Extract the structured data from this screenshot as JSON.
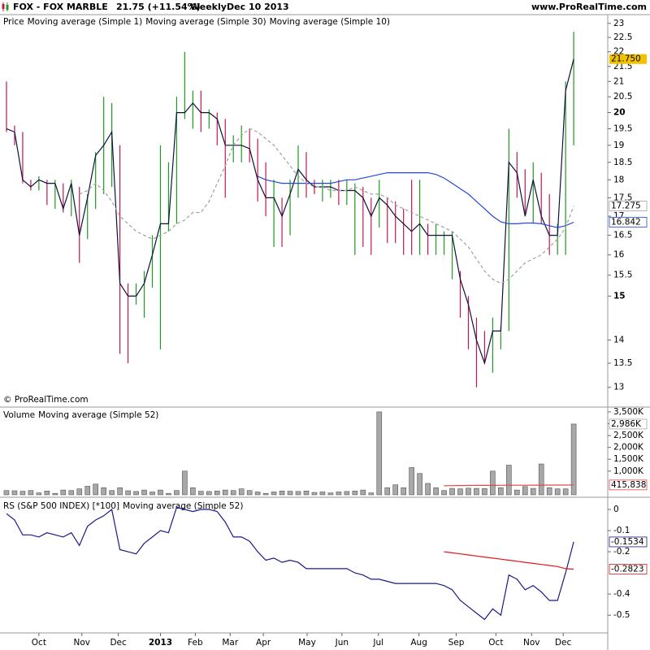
{
  "header": {
    "symbol": "FOX - FOX MARBLE",
    "quote": "21.75 (+11.54%)",
    "period": "Weekly",
    "date": "Dec 10 2013",
    "site": "www.ProRealTime.com"
  },
  "copyright": "© ProRealTime.com",
  "chart_data": [
    {
      "type": "hlc",
      "legend_title": "Price",
      "log_scale": true,
      "ylim": [
        12.62,
        23.32
      ],
      "yticks": [
        13,
        13.5,
        14,
        15,
        15.5,
        16,
        16.5,
        17,
        17.5,
        18,
        18.5,
        19,
        19.5,
        20,
        20.5,
        21,
        21.5,
        22,
        22.5,
        23
      ],
      "up_color": "#1e9a1e",
      "down_color": "#c0184e",
      "high": [
        21.0,
        19.6,
        19.4,
        18.0,
        18.1,
        18.0,
        18.0,
        17.9,
        18.0,
        17.8,
        17.6,
        18.8,
        20.5,
        20.3,
        19.0,
        15.3,
        15.3,
        15.6,
        16.5,
        19.0,
        18.5,
        20.5,
        22.0,
        20.7,
        20.7,
        20.1,
        20.0,
        19.8,
        19.3,
        19.6,
        19.5,
        19.2,
        18.5,
        18.0,
        17.5,
        18.0,
        19.0,
        18.8,
        18.0,
        18.0,
        18.0,
        18.0,
        18.0,
        17.9,
        17.8,
        17.5,
        18.0,
        17.5,
        17.4,
        17.2,
        18.0,
        18.0,
        16.8,
        16.8,
        16.6,
        16.6,
        15.6,
        15.0,
        14.5,
        14.2,
        14.5,
        14.3,
        19.5,
        18.8,
        18.3,
        18.5,
        18.2,
        17.6,
        16.8,
        21.0,
        22.7
      ],
      "low": [
        19.4,
        19.0,
        17.9,
        17.7,
        17.7,
        17.3,
        17.2,
        17.1,
        17.0,
        15.8,
        16.4,
        17.2,
        17.6,
        17.8,
        13.7,
        13.5,
        14.8,
        14.5,
        15.2,
        13.8,
        16.6,
        16.8,
        19.8,
        19.5,
        19.4,
        19.5,
        19.0,
        17.5,
        18.5,
        18.5,
        18.5,
        17.4,
        17.0,
        16.2,
        16.2,
        16.5,
        17.5,
        17.5,
        17.6,
        17.4,
        17.5,
        17.3,
        17.3,
        16.0,
        16.2,
        16.0,
        16.7,
        16.3,
        16.3,
        16.0,
        16.0,
        16.0,
        16.0,
        16.0,
        16.0,
        15.4,
        14.5,
        13.8,
        13.0,
        13.5,
        13.3,
        13.8,
        14.2,
        17.5,
        17.0,
        16.8,
        16.8,
        16.0,
        16.0,
        16.0,
        19.0
      ],
      "series": [
        {
          "name": "Moving average (Simple 1)",
          "color": "#101040",
          "style": "line",
          "tag_fill": "#f2c200",
          "values": [
            19.5,
            19.4,
            18.0,
            17.8,
            18.0,
            17.9,
            17.9,
            17.2,
            17.9,
            16.5,
            17.5,
            18.7,
            19.0,
            19.4,
            15.3,
            15.0,
            15.0,
            15.3,
            16.0,
            16.8,
            16.8,
            20.0,
            20.0,
            20.3,
            20.0,
            20.0,
            19.8,
            19.0,
            19.0,
            19.0,
            18.9,
            18.0,
            17.5,
            17.5,
            17.0,
            17.6,
            18.3,
            18.0,
            17.8,
            17.8,
            17.8,
            17.7,
            17.7,
            17.7,
            17.5,
            17.0,
            17.5,
            17.3,
            17.0,
            16.8,
            16.6,
            16.8,
            16.5,
            16.5,
            16.5,
            16.5,
            15.4,
            14.8,
            14.0,
            13.5,
            14.2,
            14.2,
            18.5,
            18.2,
            17.0,
            18.0,
            17.0,
            16.5,
            16.5,
            20.7,
            21.75
          ],
          "value_labels": [
            null,
            null,
            null,
            null,
            null,
            null,
            null,
            null,
            null,
            null,
            null,
            null,
            null,
            null,
            null,
            null,
            null,
            null,
            null,
            null,
            null,
            null,
            null,
            null,
            null,
            null,
            null,
            null,
            null,
            null,
            null,
            null,
            null,
            null,
            null,
            null,
            null,
            null,
            null,
            null,
            null,
            null,
            null,
            null,
            null,
            null,
            null,
            null,
            null,
            null,
            null,
            null,
            null,
            null,
            null,
            null,
            null,
            null,
            null,
            null,
            null,
            null,
            null,
            null,
            null,
            null,
            null,
            null,
            null,
            null,
            "21.750"
          ]
        },
        {
          "name": "Moving average (Simple 30)",
          "color": "#2448d8",
          "style": "line",
          "values": [
            null,
            null,
            null,
            null,
            null,
            null,
            null,
            null,
            null,
            null,
            null,
            null,
            null,
            null,
            null,
            null,
            null,
            null,
            null,
            null,
            null,
            null,
            null,
            null,
            null,
            null,
            null,
            null,
            null,
            null,
            null,
            18.1,
            18.0,
            17.95,
            17.9,
            17.9,
            17.9,
            17.9,
            17.9,
            17.9,
            17.9,
            17.95,
            18.0,
            18.0,
            18.05,
            18.1,
            18.15,
            18.2,
            18.2,
            18.2,
            18.2,
            18.2,
            18.2,
            18.15,
            18.05,
            17.9,
            17.75,
            17.6,
            17.4,
            17.2,
            17.0,
            16.85,
            16.8,
            16.8,
            16.82,
            16.82,
            16.8,
            16.75,
            16.7,
            16.75,
            16.842
          ]
        },
        {
          "name": "Moving average (Simple 10)",
          "color": "#a0a0a0",
          "style": "dashed",
          "values": [
            null,
            null,
            null,
            null,
            null,
            null,
            null,
            null,
            null,
            17.6,
            17.7,
            17.9,
            17.7,
            17.4,
            17.0,
            16.8,
            16.6,
            16.5,
            16.4,
            16.5,
            16.6,
            16.8,
            16.9,
            17.1,
            17.1,
            17.4,
            17.9,
            18.4,
            19.0,
            19.3,
            19.5,
            19.4,
            19.2,
            19.0,
            18.7,
            18.4,
            18.1,
            17.9,
            17.8,
            17.8,
            17.7,
            17.7,
            17.7,
            17.8,
            17.7,
            17.6,
            17.6,
            17.5,
            17.3,
            17.2,
            17.1,
            17.0,
            16.9,
            16.8,
            16.7,
            16.6,
            16.4,
            16.2,
            15.9,
            15.6,
            15.4,
            15.3,
            15.4,
            15.6,
            15.8,
            15.9,
            16.0,
            16.2,
            16.4,
            16.7,
            17.275
          ]
        }
      ]
    },
    {
      "type": "bar",
      "ylim": [
        -70,
        3670
      ],
      "yticks": [
        {
          "value": 1000,
          "label": "1,000K"
        },
        {
          "value": 1500,
          "label": "1,500K"
        },
        {
          "value": 2000,
          "label": "2,000K"
        },
        {
          "value": 2500,
          "label": "2,500K"
        },
        {
          "value": 3000,
          "label": "3,000K"
        },
        {
          "value": 3500,
          "label": "3,500K"
        }
      ],
      "series": [
        {
          "name": "Volume",
          "color": "#a8a8a8",
          "style": "bar",
          "values": [
            180,
            170,
            150,
            180,
            80,
            160,
            60,
            200,
            180,
            250,
            360,
            450,
            300,
            180,
            300,
            170,
            140,
            200,
            120,
            200,
            60,
            180,
            1000,
            300,
            150,
            140,
            160,
            200,
            180,
            250,
            180,
            120,
            60,
            120,
            160,
            150,
            140,
            160,
            100,
            120,
            80,
            120,
            140,
            160,
            200,
            80,
            3500,
            300,
            420,
            300,
            1150,
            900,
            480,
            300,
            180,
            270,
            250,
            280,
            270,
            260,
            1000,
            300,
            1250,
            200,
            350,
            270,
            1300,
            300,
            250,
            250,
            2986
          ],
          "value_labels": [
            null,
            null,
            null,
            null,
            null,
            null,
            null,
            null,
            null,
            null,
            null,
            null,
            null,
            null,
            null,
            null,
            null,
            null,
            null,
            null,
            null,
            null,
            null,
            null,
            null,
            null,
            null,
            null,
            null,
            null,
            null,
            null,
            null,
            null,
            null,
            null,
            null,
            null,
            null,
            null,
            null,
            null,
            null,
            null,
            null,
            null,
            null,
            null,
            null,
            null,
            null,
            null,
            null,
            null,
            null,
            null,
            null,
            null,
            null,
            null,
            null,
            null,
            null,
            null,
            null,
            null,
            null,
            null,
            null,
            null,
            "2,986K"
          ]
        },
        {
          "name": "Moving average (Simple 52)",
          "color": "#e04848",
          "style": "line",
          "values": [
            null,
            null,
            null,
            null,
            null,
            null,
            null,
            null,
            null,
            null,
            null,
            null,
            null,
            null,
            null,
            null,
            null,
            null,
            null,
            null,
            null,
            null,
            null,
            null,
            null,
            null,
            null,
            null,
            null,
            null,
            null,
            null,
            null,
            null,
            null,
            null,
            null,
            null,
            null,
            null,
            null,
            null,
            null,
            null,
            null,
            null,
            null,
            null,
            null,
            null,
            null,
            null,
            null,
            null,
            380,
            385,
            390,
            392,
            395,
            395,
            398,
            400,
            402,
            404,
            405,
            406,
            408,
            410,
            410,
            412,
            415.838
          ],
          "value_labels": [
            null,
            null,
            null,
            null,
            null,
            null,
            null,
            null,
            null,
            null,
            null,
            null,
            null,
            null,
            null,
            null,
            null,
            null,
            null,
            null,
            null,
            null,
            null,
            null,
            null,
            null,
            null,
            null,
            null,
            null,
            null,
            null,
            null,
            null,
            null,
            null,
            null,
            null,
            null,
            null,
            null,
            null,
            null,
            null,
            null,
            null,
            null,
            null,
            null,
            null,
            null,
            null,
            null,
            null,
            null,
            null,
            null,
            null,
            null,
            null,
            null,
            null,
            null,
            null,
            null,
            null,
            null,
            null,
            null,
            null,
            "415,838"
          ]
        }
      ]
    },
    {
      "type": "line",
      "ylim": [
        -0.58,
        0.05
      ],
      "yticks": [
        0,
        -0.1,
        -0.2,
        -0.4,
        -0.5
      ],
      "xlim": [
        -0.8,
        74.2
      ],
      "xticks": [
        {
          "value": 4.0,
          "label": "Oct"
        },
        {
          "value": 9.3,
          "label": "Nov"
        },
        {
          "value": 13.8,
          "label": "Dec"
        },
        {
          "value": 19.0,
          "label": "2013"
        },
        {
          "value": 23.3,
          "label": "Feb"
        },
        {
          "value": 27.6,
          "label": "Mar"
        },
        {
          "value": 31.7,
          "label": "Apr"
        },
        {
          "value": 37.1,
          "label": "May"
        },
        {
          "value": 41.4,
          "label": "Jun"
        },
        {
          "value": 45.9,
          "label": "Jul"
        },
        {
          "value": 50.9,
          "label": "Aug"
        },
        {
          "value": 55.5,
          "label": "Sep"
        },
        {
          "value": 60.4,
          "label": "Oct"
        },
        {
          "value": 64.8,
          "label": "Nov"
        },
        {
          "value": 68.7,
          "label": "Dec"
        }
      ],
      "series": [
        {
          "name": "RS (S&P 500 INDEX) [*100]",
          "color": "#1a1a8c",
          "style": "line",
          "values": [
            -0.02,
            -0.05,
            -0.12,
            -0.12,
            -0.13,
            -0.11,
            -0.12,
            -0.13,
            -0.11,
            -0.17,
            -0.08,
            -0.05,
            -0.03,
            0.0,
            -0.19,
            -0.2,
            -0.21,
            -0.16,
            -0.13,
            -0.1,
            -0.11,
            0.01,
            0.0,
            -0.01,
            0.0,
            0.0,
            -0.01,
            -0.06,
            -0.13,
            -0.13,
            -0.15,
            -0.2,
            -0.24,
            -0.23,
            -0.25,
            -0.24,
            -0.25,
            -0.28,
            -0.28,
            -0.28,
            -0.28,
            -0.28,
            -0.28,
            -0.3,
            -0.31,
            -0.33,
            -0.33,
            -0.34,
            -0.35,
            -0.35,
            -0.35,
            -0.35,
            -0.35,
            -0.35,
            -0.36,
            -0.38,
            -0.43,
            -0.46,
            -0.49,
            -0.52,
            -0.47,
            -0.5,
            -0.31,
            -0.33,
            -0.38,
            -0.36,
            -0.39,
            -0.43,
            -0.43,
            -0.3,
            -0.1534
          ]
        },
        {
          "name": "Moving average (Simple 52)",
          "color": "#e01818",
          "style": "line",
          "values": [
            null,
            null,
            null,
            null,
            null,
            null,
            null,
            null,
            null,
            null,
            null,
            null,
            null,
            null,
            null,
            null,
            null,
            null,
            null,
            null,
            null,
            null,
            null,
            null,
            null,
            null,
            null,
            null,
            null,
            null,
            null,
            null,
            null,
            null,
            null,
            null,
            null,
            null,
            null,
            null,
            null,
            null,
            null,
            null,
            null,
            null,
            null,
            null,
            null,
            null,
            null,
            null,
            null,
            null,
            -0.2,
            -0.205,
            -0.21,
            -0.215,
            -0.22,
            -0.225,
            -0.23,
            -0.235,
            -0.24,
            -0.245,
            -0.25,
            -0.255,
            -0.26,
            -0.265,
            -0.27,
            -0.28,
            -0.2823
          ]
        }
      ]
    }
  ]
}
